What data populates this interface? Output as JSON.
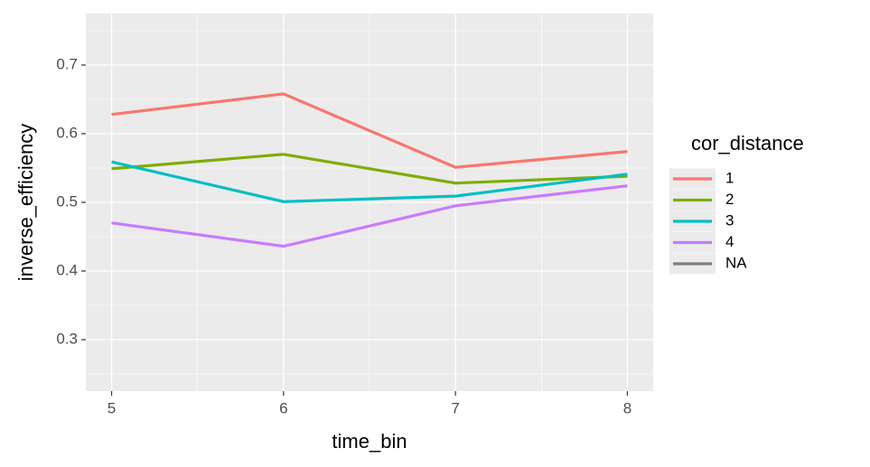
{
  "chart_data": {
    "type": "line",
    "x_label": "time_bin",
    "y_label": "inverse_efficiency",
    "x": [
      5,
      6,
      7,
      8
    ],
    "xlim": [
      4.85,
      8.15
    ],
    "xticks": [
      5,
      6,
      7,
      8
    ],
    "ylim": [
      0.225,
      0.775
    ],
    "yticks": [
      0.3,
      0.4,
      0.5,
      0.6,
      0.7
    ],
    "grid": true,
    "legend_title": "cor_distance",
    "legend_position": "right",
    "series": [
      {
        "name": "1",
        "color": "#F8766D",
        "values": [
          0.628,
          0.658,
          0.551,
          0.574
        ]
      },
      {
        "name": "2",
        "color": "#7CAE00",
        "values": [
          0.549,
          0.57,
          0.528,
          0.538
        ]
      },
      {
        "name": "3",
        "color": "#00BFC4",
        "values": [
          0.559,
          0.501,
          0.509,
          0.541
        ]
      },
      {
        "name": "4",
        "color": "#C77CFF",
        "values": [
          0.47,
          0.436,
          0.495,
          0.524
        ]
      },
      {
        "name": "NA",
        "color": "#7F7F7F",
        "values": [
          null,
          null,
          null,
          null
        ]
      }
    ]
  }
}
